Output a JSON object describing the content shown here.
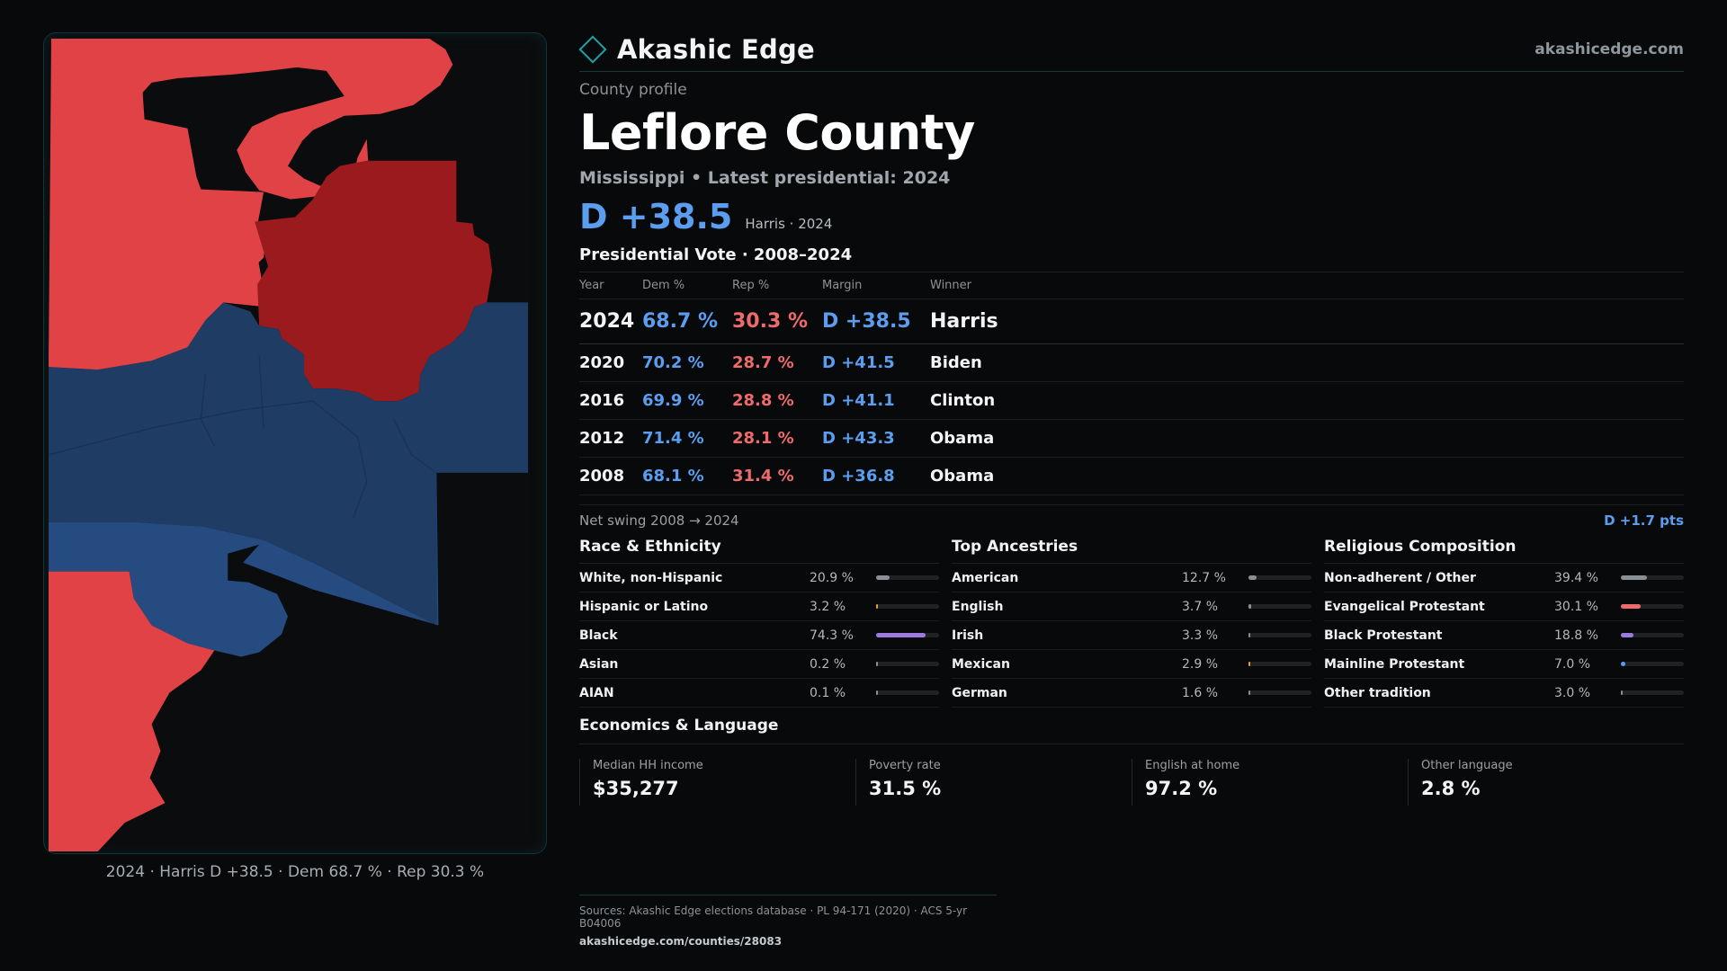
{
  "brand": {
    "name": "Akashic Edge",
    "site": "akashicedge.com"
  },
  "profile": {
    "eyebrow": "County profile",
    "title": "Leflore County",
    "subline": "Mississippi • Latest presidential: 2024",
    "headline_margin": "D +38.5",
    "headline_who": "Harris · 2024"
  },
  "votes": {
    "title": "Presidential Vote · 2008–2024",
    "columns": [
      "Year",
      "Dem %",
      "Rep %",
      "Margin",
      "Winner"
    ],
    "rows": [
      {
        "year": "2024",
        "dem": "68.7 %",
        "rep": "30.3 %",
        "margin": "D +38.5",
        "winner": "Harris"
      },
      {
        "year": "2020",
        "dem": "70.2 %",
        "rep": "28.7 %",
        "margin": "D +41.5",
        "winner": "Biden"
      },
      {
        "year": "2016",
        "dem": "69.9 %",
        "rep": "28.8 %",
        "margin": "D +41.1",
        "winner": "Clinton"
      },
      {
        "year": "2012",
        "dem": "71.4 %",
        "rep": "28.1 %",
        "margin": "D +43.3",
        "winner": "Obama"
      },
      {
        "year": "2008",
        "dem": "68.1 %",
        "rep": "31.4 %",
        "margin": "D +36.8",
        "winner": "Obama"
      }
    ],
    "swing_label": "Net swing 2008 → 2024",
    "swing_value": "D +1.7 pts"
  },
  "race": {
    "title": "Race & Ethnicity",
    "rows": [
      {
        "label": "White, non-Hispanic",
        "pct": "20.9 %",
        "value": 20.9,
        "color": "#8a9096"
      },
      {
        "label": "Hispanic or Latino",
        "pct": "3.2 %",
        "value": 3.2,
        "color": "#e3a23a"
      },
      {
        "label": "Black",
        "pct": "74.3 %",
        "value": 74.3,
        "color": "#9b7be0"
      },
      {
        "label": "Asian",
        "pct": "0.2 %",
        "value": 0.2,
        "color": "#8a9096"
      },
      {
        "label": "AIAN",
        "pct": "0.1 %",
        "value": 0.1,
        "color": "#8a9096"
      }
    ]
  },
  "ancestry": {
    "title": "Top Ancestries",
    "rows": [
      {
        "label": "American",
        "pct": "12.7 %",
        "value": 12.7,
        "color": "#8a9096"
      },
      {
        "label": "English",
        "pct": "3.7 %",
        "value": 3.7,
        "color": "#8a9096"
      },
      {
        "label": "Irish",
        "pct": "3.3 %",
        "value": 3.3,
        "color": "#8a9096"
      },
      {
        "label": "Mexican",
        "pct": "2.9 %",
        "value": 2.9,
        "color": "#e3a23a"
      },
      {
        "label": "German",
        "pct": "1.6 %",
        "value": 1.6,
        "color": "#8a9096"
      }
    ]
  },
  "religion": {
    "title": "Religious Composition",
    "rows": [
      {
        "label": "Non-adherent / Other",
        "pct": "39.4 %",
        "value": 39.4,
        "color": "#8a9096"
      },
      {
        "label": "Evangelical Protestant",
        "pct": "30.1 %",
        "value": 30.1,
        "color": "#ef6b6b"
      },
      {
        "label": "Black Protestant",
        "pct": "18.8 %",
        "value": 18.8,
        "color": "#9b7be0"
      },
      {
        "label": "Mainline Protestant",
        "pct": "7.0 %",
        "value": 7.0,
        "color": "#5b9ef0"
      },
      {
        "label": "Other tradition",
        "pct": "3.0 %",
        "value": 3.0,
        "color": "#8a9096"
      }
    ]
  },
  "economics": {
    "title": "Economics & Language",
    "stats": [
      {
        "label": "Median HH income",
        "value": "$35,277"
      },
      {
        "label": "Poverty rate",
        "value": "31.5 %"
      },
      {
        "label": "English at home",
        "value": "97.2 %"
      },
      {
        "label": "Other language",
        "value": "2.8 %"
      }
    ]
  },
  "map": {
    "caption": "2024 · Harris D +38.5 · Dem 68.7 % · Rep 30.3 %",
    "colors": {
      "rep_light": "#e04245",
      "rep_dark": "#9b1a1d",
      "dem": "#1f3c64",
      "dem_light": "#254b80"
    }
  },
  "sources": {
    "text": "Sources: Akashic Edge elections database · PL 94-171 (2020) · ACS 5-yr B04006",
    "url": "akashicedge.com/counties/28083"
  }
}
